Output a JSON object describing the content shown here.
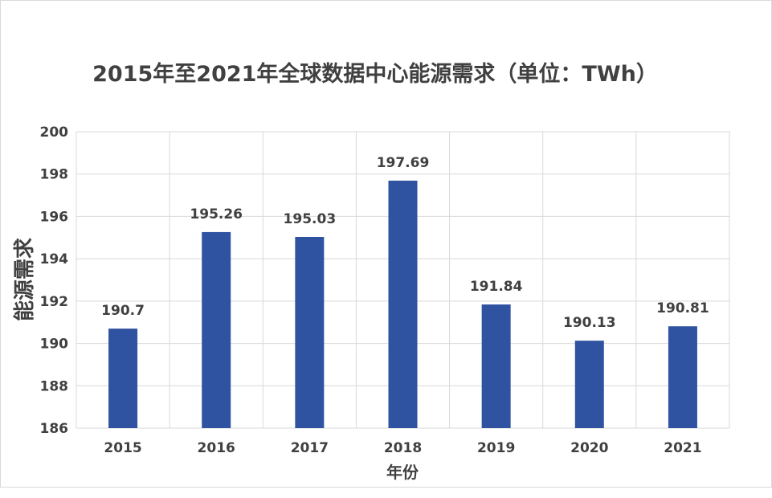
{
  "chart_data": {
    "type": "bar",
    "title": "2015年至2021年全球数据中心能源需求（单位：TWh）",
    "xlabel": "年份",
    "ylabel": "能源需求",
    "categories": [
      "2015",
      "2016",
      "2017",
      "2018",
      "2019",
      "2020",
      "2021"
    ],
    "values": [
      190.7,
      195.26,
      195.03,
      197.69,
      191.84,
      190.13,
      190.81
    ],
    "data_labels": [
      "190.7",
      "195.26",
      "195.03",
      "197.69",
      "191.84",
      "190.13",
      "190.81"
    ],
    "ylim": [
      186,
      200
    ],
    "yticks": [
      186,
      188,
      190,
      192,
      194,
      196,
      198,
      200
    ],
    "grid": "horizontal and vertical",
    "legend": "none",
    "colors": {
      "bar": "#2f52a1",
      "grid": "#d9d9d9",
      "text": "#404040"
    }
  }
}
